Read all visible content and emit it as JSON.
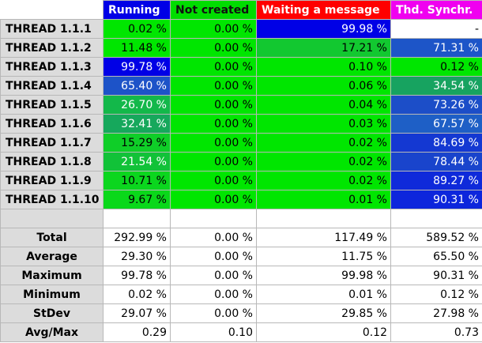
{
  "columns": [
    "Running",
    "Not created",
    "Waiting a message",
    "Thd. Synchr."
  ],
  "threads": [
    {
      "name": "THREAD 1.1.1",
      "cells": [
        {
          "v": "0.02 %",
          "bg": "#00e600"
        },
        {
          "v": "0.00 %",
          "bg": "#00e600"
        },
        {
          "v": "99.98 %",
          "bg": "#0000e6",
          "light": true
        },
        {
          "v": "-",
          "bg": "#ffffff"
        }
      ]
    },
    {
      "name": "THREAD 1.1.2",
      "cells": [
        {
          "v": "11.48 %",
          "bg": "#00e600"
        },
        {
          "v": "0.00 %",
          "bg": "#00e600"
        },
        {
          "v": "17.21 %",
          "bg": "#12c830"
        },
        {
          "v": "71.31 %",
          "bg": "#1d55c8",
          "light": true
        }
      ]
    },
    {
      "name": "THREAD 1.1.3",
      "cells": [
        {
          "v": "99.78 %",
          "bg": "#0000e6",
          "light": true
        },
        {
          "v": "0.00 %",
          "bg": "#00e600"
        },
        {
          "v": "0.10 %",
          "bg": "#00e600"
        },
        {
          "v": "0.12 %",
          "bg": "#00e600"
        }
      ]
    },
    {
      "name": "THREAD 1.1.4",
      "cells": [
        {
          "v": "65.40 %",
          "bg": "#1d53c8",
          "light": true
        },
        {
          "v": "0.00 %",
          "bg": "#00e600"
        },
        {
          "v": "0.06 %",
          "bg": "#00e600"
        },
        {
          "v": "34.54 %",
          "bg": "#17a360",
          "light": true
        }
      ]
    },
    {
      "name": "THREAD 1.1.5",
      "cells": [
        {
          "v": "26.70 %",
          "bg": "#13b84a",
          "light": true
        },
        {
          "v": "0.00 %",
          "bg": "#00e600"
        },
        {
          "v": "0.04 %",
          "bg": "#00e600"
        },
        {
          "v": "73.26 %",
          "bg": "#1c4ec8",
          "light": true
        }
      ]
    },
    {
      "name": "THREAD 1.1.6",
      "cells": [
        {
          "v": "32.41 %",
          "bg": "#16a85c",
          "light": true
        },
        {
          "v": "0.00 %",
          "bg": "#00e600"
        },
        {
          "v": "0.03 %",
          "bg": "#00e600"
        },
        {
          "v": "67.57 %",
          "bg": "#1e5fc6",
          "light": true
        }
      ]
    },
    {
      "name": "THREAD 1.1.7",
      "cells": [
        {
          "v": "15.29 %",
          "bg": "#0fce28"
        },
        {
          "v": "0.00 %",
          "bg": "#00e600"
        },
        {
          "v": "0.02 %",
          "bg": "#00e600"
        },
        {
          "v": "84.69 %",
          "bg": "#1438d2",
          "light": true
        }
      ]
    },
    {
      "name": "THREAD 1.1.8",
      "cells": [
        {
          "v": "21.54 %",
          "bg": "#11c238",
          "light": true
        },
        {
          "v": "0.00 %",
          "bg": "#00e600"
        },
        {
          "v": "0.02 %",
          "bg": "#00e600"
        },
        {
          "v": "78.44 %",
          "bg": "#1944cc",
          "light": true
        }
      ]
    },
    {
      "name": "THREAD 1.1.9",
      "cells": [
        {
          "v": "10.71 %",
          "bg": "#0bd61e"
        },
        {
          "v": "0.00 %",
          "bg": "#00e600"
        },
        {
          "v": "0.02 %",
          "bg": "#00e600"
        },
        {
          "v": "89.27 %",
          "bg": "#0f2ada",
          "light": true
        }
      ]
    },
    {
      "name": "THREAD 1.1.10",
      "cells": [
        {
          "v": "9.67 %",
          "bg": "#0ad81a"
        },
        {
          "v": "0.00 %",
          "bg": "#00e600"
        },
        {
          "v": "0.01 %",
          "bg": "#00e600"
        },
        {
          "v": "90.31 %",
          "bg": "#0d26dc",
          "light": true
        }
      ]
    }
  ],
  "stats": [
    {
      "name": "Total",
      "values": [
        "292.99 %",
        "0.00 %",
        "117.49 %",
        "589.52 %"
      ]
    },
    {
      "name": "Average",
      "values": [
        "29.30 %",
        "0.00 %",
        "11.75 %",
        "65.50 %"
      ]
    },
    {
      "name": "Maximum",
      "values": [
        "99.78 %",
        "0.00 %",
        "99.98 %",
        "90.31 %"
      ]
    },
    {
      "name": "Minimum",
      "values": [
        "0.02 %",
        "0.00 %",
        "0.01 %",
        "0.12 %"
      ]
    },
    {
      "name": "StDev",
      "values": [
        "29.07 %",
        "0.00 %",
        "29.85 %",
        "27.98 %"
      ]
    },
    {
      "name": "Avg/Max",
      "values": [
        "0.29",
        "0.10",
        "0.12",
        "0.73"
      ]
    }
  ]
}
